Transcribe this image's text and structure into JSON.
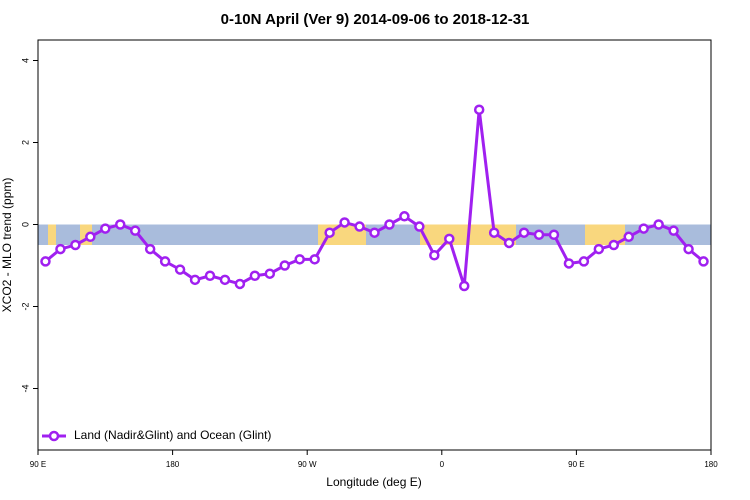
{
  "chart_data": {
    "type": "line",
    "title": "0-10N April (Ver 9)   2014-09-06 to 2018-12-31",
    "xlabel": "Longitude (deg E)",
    "ylabel": "XCO2 - MLO trend (ppm)",
    "xlim": [
      90,
      540
    ],
    "ylim": [
      -5.5,
      4.5
    ],
    "xticks": [
      {
        "value": 90,
        "label": "90 E"
      },
      180,
      {
        "value": 270,
        "label": "90 W"
      },
      {
        "value": 360,
        "label": "0"
      },
      {
        "value": 450,
        "label": "90 E"
      },
      {
        "value": 540,
        "label": "180"
      }
    ],
    "yticks": [
      -4,
      -2,
      0,
      2,
      4
    ],
    "band_ylim": [
      -0.5,
      0
    ],
    "legend": "bottom-left",
    "x": [
      95,
      105,
      115,
      125,
      135,
      145,
      155,
      165,
      175,
      185,
      195,
      205,
      215,
      225,
      235,
      245,
      255,
      265,
      275,
      285,
      295,
      305,
      315,
      325,
      335,
      345,
      355,
      365,
      375,
      385,
      395,
      405,
      415,
      425,
      435,
      445,
      455,
      465,
      475,
      485,
      495,
      505,
      515,
      525,
      535
    ],
    "series": [
      {
        "name": "Land (Nadir&Glint) and Ocean (Glint)",
        "color": "#a020f0",
        "values": [
          -0.9,
          -0.6,
          -0.5,
          -0.3,
          -0.1,
          0.0,
          -0.15,
          -0.6,
          -0.9,
          -1.1,
          -1.35,
          -1.25,
          -1.35,
          -1.45,
          -1.25,
          -1.2,
          -1.0,
          -0.85,
          -0.85,
          -0.2,
          0.05,
          -0.05,
          -0.2,
          0.0,
          0.2,
          -0.05,
          -0.75,
          -0.35,
          -1.5,
          2.8,
          -0.2,
          -0.45,
          -0.2,
          -0.25,
          -0.25,
          -0.95,
          -0.9,
          -0.6,
          -0.5,
          -0.3,
          -0.1,
          0.0,
          -0.15,
          -0.6,
          -0.9
        ]
      }
    ]
  }
}
